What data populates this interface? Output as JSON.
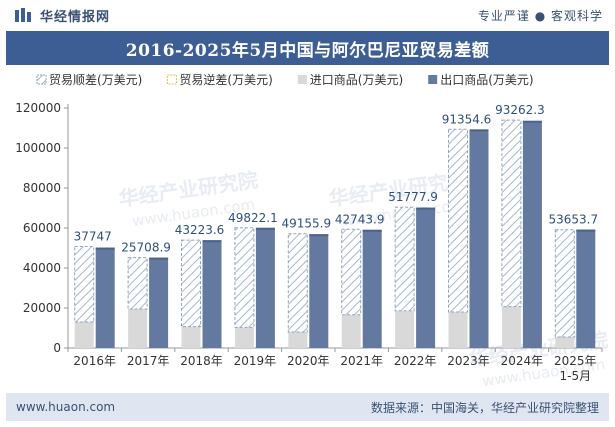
{
  "header": {
    "brand_name": "华经情报网",
    "tagline": "专业严谨 ● 客观科学"
  },
  "title": "2016-2025年5月中国与阿尔巴尼亚贸易差额",
  "footer": {
    "website": "www.huaon.com",
    "source": "数据来源：中国海关，华经产业研究院整理"
  },
  "watermark": {
    "line1": "华经产业研究院",
    "line2": "www.huaon.com"
  },
  "colors": {
    "header_blue": "#3d5e94",
    "export_bar": "#64799f",
    "import_bar": "#d9d9d9",
    "surplus_hatch": "#8fa3c2",
    "footer_bg": "#dfe6f1"
  },
  "chart_data": {
    "type": "bar",
    "categories": [
      "2016年",
      "2017年",
      "2018年",
      "2019年",
      "2020年",
      "2021年",
      "2022年",
      "2023年",
      "2024年",
      "2025年\n1-5月"
    ],
    "series": [
      {
        "name": "贸易顺差(万美元)",
        "values": [
          37747,
          25708.9,
          43223.6,
          49822.1,
          49155.9,
          42743.9,
          51777.9,
          91354.6,
          93262.3,
          53653.7
        ]
      },
      {
        "name": "贸易逆差(万美元)",
        "values": [
          0,
          0,
          0,
          0,
          0,
          0,
          0,
          0,
          0,
          0
        ]
      },
      {
        "name": "进口商品(万美元)",
        "values": [
          13000,
          19500,
          10700,
          10300,
          8000,
          16600,
          18600,
          18000,
          20700,
          5500
        ]
      },
      {
        "name": "出口商品(万美元)",
        "values": [
          50200,
          45200,
          53900,
          60100,
          56900,
          59100,
          70200,
          109300,
          113600,
          59200
        ]
      }
    ],
    "data_labels": [
      "37747",
      "25708.9",
      "43223.6",
      "49822.1",
      "49155.9",
      "42743.9",
      "51777.9",
      "91354.6",
      "93262.3",
      "53653.7"
    ],
    "ylim": [
      0,
      120000
    ],
    "yticks": [
      0,
      20000,
      40000,
      60000,
      80000,
      100000,
      120000
    ],
    "legend": "top",
    "grid": false
  }
}
